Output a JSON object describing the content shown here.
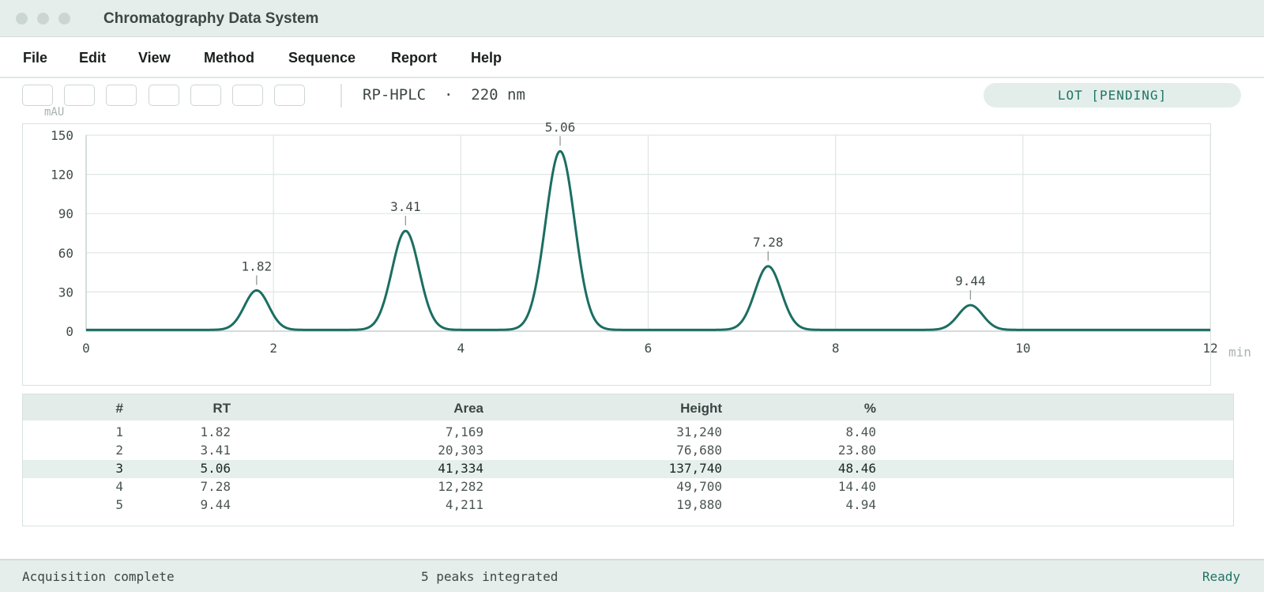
{
  "window": {
    "title": "Chromatography Data System"
  },
  "menu": [
    "File",
    "Edit",
    "View",
    "Method",
    "Sequence",
    "Report",
    "Help"
  ],
  "toolbar": {
    "method": "RP-HPLC  ·  220 nm",
    "lot_badge": "LOT [PENDING]"
  },
  "chart_data": {
    "type": "line",
    "ylabel": "mAU",
    "xlabel": "min",
    "xlim": [
      0,
      12
    ],
    "ylim": [
      0,
      150
    ],
    "x_ticks": [
      0,
      2,
      4,
      6,
      8,
      10,
      12
    ],
    "y_ticks": [
      0,
      30,
      60,
      90,
      120,
      150
    ],
    "grid": true,
    "baseline": 1.0,
    "peaks": [
      {
        "label": "1.82",
        "rt": 1.82,
        "height": 31.2,
        "sigma": 0.13
      },
      {
        "label": "3.41",
        "rt": 3.41,
        "height": 76.7,
        "sigma": 0.145
      },
      {
        "label": "5.06",
        "rt": 5.06,
        "height": 137.7,
        "sigma": 0.155
      },
      {
        "label": "7.28",
        "rt": 7.28,
        "height": 49.7,
        "sigma": 0.14
      },
      {
        "label": "9.44",
        "rt": 9.44,
        "height": 19.9,
        "sigma": 0.13
      }
    ],
    "line_color": "#1b6e62",
    "grid_color": "#dfe6e3"
  },
  "table": {
    "headers": [
      "#",
      "RT",
      "Area",
      "Height",
      "%"
    ],
    "rows": [
      [
        "1",
        "1.82",
        "7,169",
        "31,240",
        "8.40"
      ],
      [
        "2",
        "3.41",
        "20,303",
        "76,680",
        "23.80"
      ],
      [
        "3",
        "5.06",
        "41,334",
        "137,740",
        "48.46"
      ],
      [
        "4",
        "7.28",
        "12,282",
        "49,700",
        "14.40"
      ],
      [
        "5",
        "9.44",
        "4,211",
        "19,880",
        "4.94"
      ]
    ],
    "highlighted_row": 3
  },
  "status": {
    "left": "Acquisition complete",
    "center": "5 peaks integrated",
    "right": "Ready"
  }
}
